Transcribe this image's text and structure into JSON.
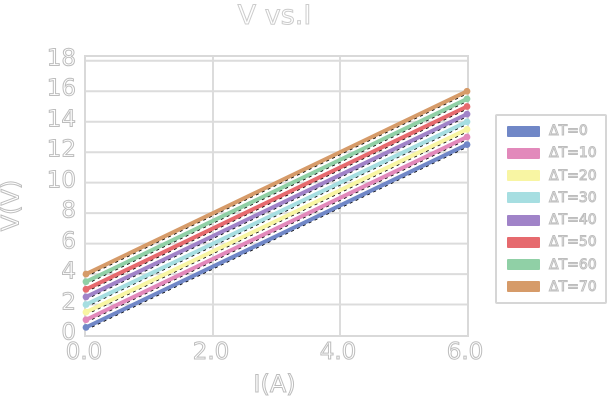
{
  "chart_data": {
    "type": "line",
    "title": "V vs.I",
    "xlabel": "I(A)",
    "ylabel": "V(V)",
    "xlim": [
      0,
      6
    ],
    "ylim": [
      0,
      18.25
    ],
    "grid": true,
    "legend_position": "outside-right",
    "xticks": {
      "values": [
        0,
        2,
        4,
        6
      ],
      "labels": [
        "0.0",
        "2.0",
        "4.0",
        "6.0"
      ]
    },
    "yticks": {
      "values": [
        0,
        2,
        4,
        6,
        8,
        10,
        12,
        14,
        16,
        18
      ],
      "labels": [
        "0",
        "2",
        "4",
        "6",
        "8",
        "10",
        "12",
        "14",
        "16",
        "18"
      ]
    },
    "series": [
      {
        "name": "ΔT=0",
        "color": "#7087c7",
        "x": [
          0,
          6
        ],
        "y": [
          0.5,
          12.5
        ]
      },
      {
        "name": "ΔT=10",
        "color": "#e289bb",
        "x": [
          0,
          6
        ],
        "y": [
          1.0,
          13.0
        ]
      },
      {
        "name": "ΔT=20",
        "color": "#f8f5a3",
        "x": [
          0,
          6
        ],
        "y": [
          1.5,
          13.5
        ]
      },
      {
        "name": "ΔT=30",
        "color": "#a6dee1",
        "x": [
          0,
          6
        ],
        "y": [
          2.0,
          14.0
        ]
      },
      {
        "name": "ΔT=40",
        "color": "#a083c8",
        "x": [
          0,
          6
        ],
        "y": [
          2.5,
          14.5
        ]
      },
      {
        "name": "ΔT=50",
        "color": "#e66a6e",
        "x": [
          0,
          6
        ],
        "y": [
          3.0,
          15.0
        ]
      },
      {
        "name": "ΔT=60",
        "color": "#90d0a6",
        "x": [
          0,
          6
        ],
        "y": [
          3.5,
          15.5
        ]
      },
      {
        "name": "ΔT=70",
        "color": "#d69b69",
        "x": [
          0,
          6
        ],
        "y": [
          4.0,
          16.0
        ]
      }
    ],
    "fit_lines": {
      "present": true,
      "color": "#000000",
      "style": "dashed"
    }
  },
  "colors": {
    "background": "#ffffff",
    "gridline": "#dcdcdc",
    "spine": "#d9d9d9",
    "text_outline": "#bdbdbd",
    "title_outline": "#cccccc",
    "legend_border": "#d6d6d6"
  }
}
